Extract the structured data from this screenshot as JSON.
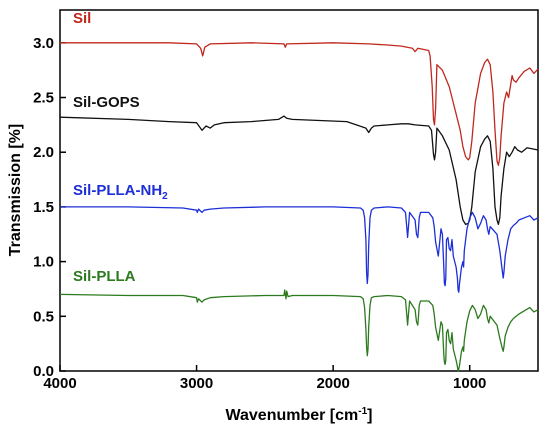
{
  "chart_data": {
    "type": "line",
    "xlabel": "Wavenumber [cm",
    "xlabel_sup": "-1",
    "xlabel_end": "]",
    "ylabel": "Transmission [%]",
    "xlim": [
      4000,
      500
    ],
    "ylim": [
      0.0,
      3.3
    ],
    "x_ticks": [
      4000,
      3000,
      2000,
      1000
    ],
    "x_tick_labels": [
      "4000",
      "3000",
      "2000",
      "1000"
    ],
    "y_ticks": [
      0.0,
      0.5,
      1.0,
      1.5,
      2.0,
      2.5,
      3.0
    ],
    "y_tick_labels": [
      "0.0",
      "0.5",
      "1.0",
      "1.5",
      "2.0",
      "2.5",
      "3.0"
    ],
    "grid": false,
    "series": [
      {
        "name": "Sil",
        "color": "#c0281e",
        "x": [
          4000,
          3200,
          3000,
          2970,
          2955,
          2940,
          2900,
          2600,
          2360,
          2350,
          2340,
          2000,
          1740,
          1600,
          1500,
          1420,
          1400,
          1380,
          1300,
          1290,
          1275,
          1265,
          1258,
          1250,
          1240,
          1200,
          1150,
          1100,
          1070,
          1050,
          1030,
          1010,
          1000,
          985,
          960,
          920,
          890,
          870,
          850,
          830,
          815,
          800,
          790,
          780,
          770,
          750,
          730,
          715,
          700,
          690,
          680,
          660,
          640,
          600,
          560,
          530,
          500
        ],
        "y": [
          3.0,
          3.0,
          2.99,
          2.95,
          2.88,
          2.96,
          2.99,
          3.0,
          2.99,
          2.96,
          2.99,
          3.0,
          2.99,
          2.98,
          2.97,
          2.95,
          2.92,
          2.95,
          2.93,
          2.88,
          2.6,
          2.3,
          2.25,
          2.4,
          2.8,
          2.75,
          2.6,
          2.35,
          2.2,
          2.05,
          1.96,
          1.93,
          1.95,
          2.1,
          2.45,
          2.72,
          2.82,
          2.85,
          2.8,
          2.55,
          2.2,
          1.92,
          1.88,
          1.95,
          2.15,
          2.45,
          2.55,
          2.5,
          2.62,
          2.7,
          2.66,
          2.64,
          2.68,
          2.74,
          2.77,
          2.72,
          2.76
        ]
      },
      {
        "name": "Sil-GOPS",
        "color": "#111111",
        "x": [
          4000,
          3500,
          3200,
          3000,
          2960,
          2930,
          2900,
          2870,
          2800,
          2600,
          2400,
          2360,
          2340,
          2300,
          2100,
          1900,
          1760,
          1740,
          1720,
          1700,
          1600,
          1500,
          1450,
          1400,
          1300,
          1280,
          1265,
          1258,
          1250,
          1240,
          1200,
          1150,
          1100,
          1070,
          1050,
          1030,
          1010,
          1000,
          985,
          960,
          920,
          890,
          870,
          850,
          830,
          815,
          800,
          790,
          780,
          770,
          750,
          730,
          710,
          690,
          670,
          650,
          620,
          580,
          540,
          500
        ],
        "y": [
          2.32,
          2.3,
          2.28,
          2.27,
          2.2,
          2.24,
          2.22,
          2.25,
          2.27,
          2.28,
          2.3,
          2.33,
          2.31,
          2.3,
          2.29,
          2.28,
          2.22,
          2.18,
          2.22,
          2.24,
          2.25,
          2.26,
          2.26,
          2.25,
          2.24,
          2.2,
          1.98,
          1.93,
          2.0,
          2.22,
          2.15,
          2.02,
          1.75,
          1.5,
          1.38,
          1.34,
          1.35,
          1.38,
          1.5,
          1.82,
          2.05,
          2.12,
          2.15,
          2.1,
          1.85,
          1.5,
          1.38,
          1.34,
          1.4,
          1.6,
          1.85,
          2.0,
          1.96,
          2.0,
          2.05,
          2.02,
          2.0,
          2.04,
          2.03,
          2.02
        ]
      },
      {
        "name": "Sil-PLLA-NH",
        "name_sub": "2",
        "color": "#1c2fd8",
        "x": [
          4000,
          3500,
          3100,
          3000,
          2995,
          2985,
          2960,
          2945,
          2900,
          2800,
          2500,
          2000,
          1800,
          1780,
          1770,
          1760,
          1755,
          1750,
          1745,
          1740,
          1730,
          1720,
          1700,
          1600,
          1500,
          1470,
          1460,
          1455,
          1450,
          1440,
          1400,
          1390,
          1380,
          1375,
          1370,
          1360,
          1300,
          1270,
          1260,
          1250,
          1230,
          1210,
          1200,
          1190,
          1185,
          1180,
          1175,
          1170,
          1160,
          1150,
          1140,
          1130,
          1120,
          1100,
          1090,
          1085,
          1080,
          1075,
          1060,
          1050,
          1045,
          1040,
          1020,
          1000,
          980,
          960,
          940,
          920,
          900,
          880,
          870,
          860,
          850,
          800,
          780,
          760,
          755,
          750,
          740,
          720,
          700,
          680,
          660,
          640,
          600,
          560,
          530,
          500
        ],
        "y": [
          1.5,
          1.5,
          1.49,
          1.47,
          1.45,
          1.48,
          1.45,
          1.47,
          1.48,
          1.49,
          1.5,
          1.5,
          1.49,
          1.47,
          1.4,
          1.2,
          0.9,
          0.8,
          0.88,
          1.15,
          1.4,
          1.47,
          1.49,
          1.5,
          1.49,
          1.45,
          1.3,
          1.22,
          1.3,
          1.45,
          1.38,
          1.25,
          1.22,
          1.3,
          1.4,
          1.45,
          1.45,
          1.4,
          1.32,
          1.18,
          1.05,
          1.3,
          1.25,
          0.95,
          0.8,
          0.78,
          0.85,
          1.2,
          1.22,
          1.12,
          1.1,
          1.2,
          1.05,
          0.95,
          0.85,
          0.74,
          0.72,
          0.8,
          0.95,
          1.0,
          0.95,
          1.1,
          1.3,
          1.4,
          1.45,
          1.4,
          1.3,
          1.35,
          1.42,
          1.38,
          1.3,
          1.25,
          1.32,
          1.25,
          1.1,
          0.9,
          0.85,
          0.9,
          1.05,
          1.2,
          1.3,
          1.33,
          1.35,
          1.38,
          1.4,
          1.42,
          1.38,
          1.4
        ]
      },
      {
        "name": "Sil-PLLA",
        "color": "#2c7a1e",
        "x": [
          4000,
          3500,
          3100,
          3000,
          2995,
          2985,
          2960,
          2945,
          2900,
          2800,
          2500,
          2360,
          2355,
          2345,
          2340,
          2330,
          2300,
          2000,
          1800,
          1780,
          1770,
          1760,
          1755,
          1750,
          1745,
          1740,
          1730,
          1720,
          1700,
          1600,
          1500,
          1470,
          1460,
          1455,
          1450,
          1440,
          1400,
          1390,
          1380,
          1375,
          1370,
          1360,
          1300,
          1270,
          1260,
          1250,
          1230,
          1210,
          1200,
          1190,
          1185,
          1180,
          1175,
          1170,
          1160,
          1150,
          1140,
          1130,
          1120,
          1100,
          1090,
          1085,
          1080,
          1075,
          1060,
          1050,
          1045,
          1040,
          1020,
          1000,
          980,
          960,
          940,
          920,
          900,
          880,
          870,
          860,
          850,
          800,
          780,
          760,
          755,
          750,
          740,
          720,
          700,
          680,
          660,
          640,
          600,
          560,
          530,
          500
        ],
        "y": [
          0.7,
          0.69,
          0.69,
          0.67,
          0.63,
          0.66,
          0.63,
          0.65,
          0.67,
          0.68,
          0.69,
          0.69,
          0.74,
          0.66,
          0.73,
          0.68,
          0.69,
          0.69,
          0.68,
          0.66,
          0.58,
          0.38,
          0.22,
          0.14,
          0.2,
          0.4,
          0.6,
          0.67,
          0.68,
          0.69,
          0.68,
          0.65,
          0.5,
          0.42,
          0.5,
          0.64,
          0.56,
          0.45,
          0.42,
          0.5,
          0.6,
          0.64,
          0.64,
          0.6,
          0.52,
          0.4,
          0.28,
          0.45,
          0.42,
          0.15,
          0.08,
          0.06,
          0.1,
          0.35,
          0.38,
          0.28,
          0.25,
          0.35,
          0.2,
          0.1,
          0.04,
          0.0,
          0.02,
          0.05,
          0.18,
          0.22,
          0.18,
          0.28,
          0.45,
          0.55,
          0.6,
          0.56,
          0.48,
          0.52,
          0.6,
          0.56,
          0.48,
          0.44,
          0.5,
          0.42,
          0.3,
          0.2,
          0.18,
          0.22,
          0.32,
          0.4,
          0.45,
          0.48,
          0.5,
          0.52,
          0.55,
          0.58,
          0.54,
          0.56
        ]
      }
    ]
  }
}
